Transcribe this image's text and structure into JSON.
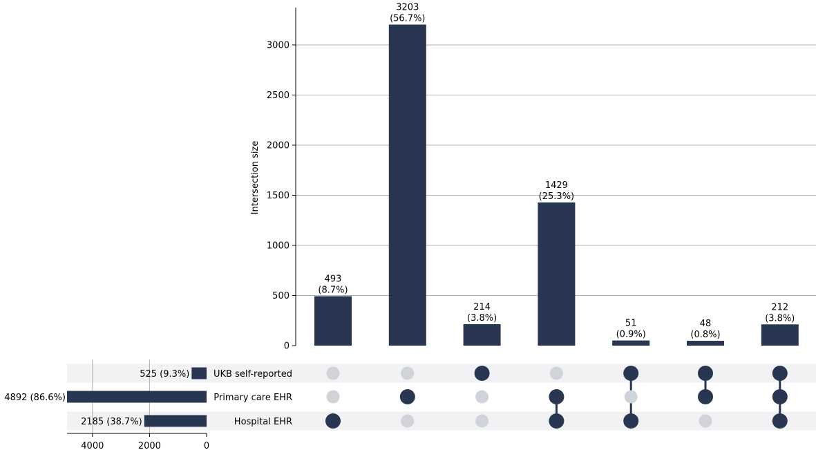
{
  "colors": {
    "bar": "#283651",
    "dot_active": "#283651",
    "dot_inactive": "#d0d3da",
    "stripe": "#f2f2f4",
    "grid": "#b0b0b0"
  },
  "chart_data": {
    "type": "upset",
    "ylabel": "Intersection size",
    "ylim": [
      0,
      3350
    ],
    "yticks": [
      0,
      500,
      1000,
      1500,
      2000,
      2500,
      3000
    ],
    "sets": [
      {
        "name": "UKB self-reported",
        "size": 525,
        "label": "525 (9.3%)"
      },
      {
        "name": "Primary care EHR",
        "size": 4892,
        "label": "4892 (86.6%)"
      },
      {
        "name": "Hospital EHR",
        "size": 2185,
        "label": "2185 (38.7%)"
      }
    ],
    "set_size_ticks": [
      4000,
      2000,
      0
    ],
    "set_size_max": 4892,
    "intersections": [
      {
        "members": [
          2
        ],
        "value": 493,
        "count_label": "493",
        "pct_label": "(8.7%)"
      },
      {
        "members": [
          1
        ],
        "value": 3203,
        "count_label": "3203",
        "pct_label": "(56.7%)"
      },
      {
        "members": [
          0
        ],
        "value": 214,
        "count_label": "214",
        "pct_label": "(3.8%)"
      },
      {
        "members": [
          1,
          2
        ],
        "value": 1429,
        "count_label": "1429",
        "pct_label": "(25.3%)"
      },
      {
        "members": [
          0,
          2
        ],
        "value": 51,
        "count_label": "51",
        "pct_label": "(0.9%)"
      },
      {
        "members": [
          0,
          1
        ],
        "value": 48,
        "count_label": "48",
        "pct_label": "(0.8%)"
      },
      {
        "members": [
          0,
          1,
          2
        ],
        "value": 212,
        "count_label": "212",
        "pct_label": "(3.8%)"
      }
    ]
  }
}
